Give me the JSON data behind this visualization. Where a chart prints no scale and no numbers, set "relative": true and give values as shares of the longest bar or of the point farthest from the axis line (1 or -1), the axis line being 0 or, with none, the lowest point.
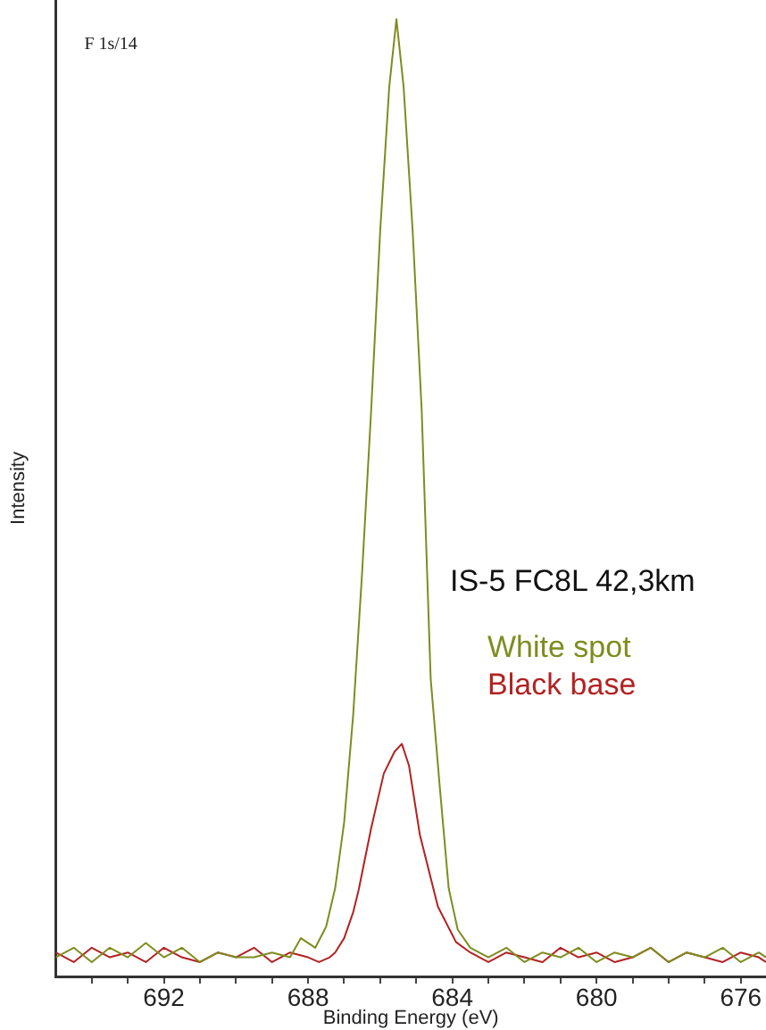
{
  "chart_data": {
    "type": "line",
    "relative": true,
    "xlabel": "Binding Energy (eV)",
    "ylabel": "Intensity",
    "annotations": [
      "F 1s/14",
      "IS-5 FC8L 42,3km"
    ],
    "xlim": [
      695,
      675.3
    ],
    "xticks": [
      {
        "value": 694,
        "label": null
      },
      {
        "value": 693,
        "label": null
      },
      692,
      {
        "value": 691,
        "label": null
      },
      {
        "value": 690,
        "label": null
      },
      {
        "value": 689,
        "label": null
      },
      688,
      {
        "value": 687,
        "label": null
      },
      {
        "value": 686,
        "label": null
      },
      {
        "value": 685,
        "label": null
      },
      684,
      {
        "value": 683,
        "label": null
      },
      {
        "value": 682,
        "label": null
      },
      {
        "value": 681,
        "label": null
      },
      680,
      {
        "value": 679,
        "label": null
      },
      {
        "value": 678,
        "label": null
      },
      {
        "value": 677,
        "label": null
      },
      676
    ],
    "grid": false,
    "legend": false,
    "marker": "none",
    "line_style": "solid",
    "series": [
      {
        "name": "White spot",
        "color": "#7f8c1f",
        "x": [
          695,
          694.5,
          694,
          693.5,
          693,
          692.5,
          692,
          691.5,
          691,
          690.5,
          690,
          689.5,
          689,
          688.5,
          688.2,
          687.8,
          687.5,
          687.25,
          687,
          686.75,
          686.5,
          686.25,
          686,
          685.75,
          685.55,
          685.35,
          685.1,
          684.85,
          684.6,
          684.35,
          684.1,
          683.85,
          683.5,
          683,
          682.5,
          682,
          681.5,
          681,
          680.5,
          680,
          679.5,
          679,
          678.5,
          678,
          677.5,
          677,
          676.5,
          676,
          675.5,
          675.3
        ],
        "values": [
          0.02,
          0.03,
          0.015,
          0.03,
          0.02,
          0.035,
          0.02,
          0.03,
          0.015,
          0.025,
          0.02,
          0.02,
          0.025,
          0.02,
          0.04,
          0.03,
          0.052,
          0.092,
          0.161,
          0.273,
          0.423,
          0.592,
          0.779,
          0.929,
          1,
          0.929,
          0.779,
          0.592,
          0.311,
          0.199,
          0.092,
          0.049,
          0.03,
          0.02,
          0.03,
          0.015,
          0.025,
          0.02,
          0.03,
          0.015,
          0.025,
          0.02,
          0.03,
          0.015,
          0.025,
          0.02,
          0.03,
          0.015,
          0.025,
          0.02
        ]
      },
      {
        "name": "Black base",
        "color": "#b22222",
        "x": [
          695,
          694.5,
          694,
          693.5,
          693,
          692.5,
          692,
          691.5,
          691,
          690.5,
          690,
          689.5,
          689,
          688.5,
          688,
          687.7,
          687.4,
          687.25,
          687,
          686.75,
          686.6,
          686.25,
          685.9,
          685.6,
          685.4,
          685.2,
          684.9,
          684.4,
          683.9,
          683.5,
          683,
          682.5,
          682,
          681.5,
          681,
          680.5,
          680,
          679.5,
          679,
          678.5,
          678,
          677.5,
          677,
          676.5,
          676,
          675.5,
          675.3
        ],
        "values": [
          0.025,
          0.015,
          0.03,
          0.02,
          0.025,
          0.015,
          0.03,
          0.02,
          0.015,
          0.025,
          0.02,
          0.03,
          0.015,
          0.025,
          0.02,
          0.015,
          0.02,
          0.025,
          0.04,
          0.067,
          0.09,
          0.155,
          0.212,
          0.235,
          0.243,
          0.22,
          0.148,
          0.073,
          0.036,
          0.025,
          0.015,
          0.025,
          0.02,
          0.015,
          0.03,
          0.02,
          0.025,
          0.015,
          0.02,
          0.03,
          0.015,
          0.025,
          0.02,
          0.015,
          0.025,
          0.02,
          0.015
        ]
      }
    ]
  }
}
